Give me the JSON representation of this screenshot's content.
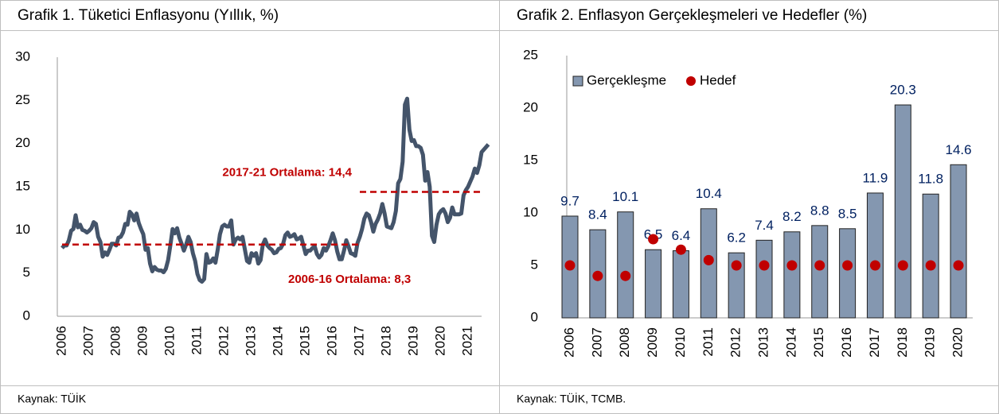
{
  "chart_data": [
    {
      "type": "line",
      "title": "Grafik 1. Tüketici Enflasyonu (Yıllık, %)",
      "source": "Kaynak: TÜİK",
      "categories": [
        "2006",
        null,
        null,
        null,
        null,
        null,
        null,
        null,
        null,
        null,
        null,
        null,
        "2007",
        null,
        null,
        null,
        null,
        null,
        null,
        null,
        null,
        null,
        null,
        null,
        "2008",
        null,
        null,
        null,
        null,
        null,
        null,
        null,
        null,
        null,
        null,
        null,
        "2009",
        null,
        null,
        null,
        null,
        null,
        null,
        null,
        null,
        null,
        null,
        null,
        "2010",
        null,
        null,
        null,
        null,
        null,
        null,
        null,
        null,
        null,
        null,
        null,
        "2011",
        null,
        null,
        null,
        null,
        null,
        null,
        null,
        null,
        null,
        null,
        null,
        "2012",
        null,
        null,
        null,
        null,
        null,
        null,
        null,
        null,
        null,
        null,
        null,
        "2013",
        null,
        null,
        null,
        null,
        null,
        null,
        null,
        null,
        null,
        null,
        null,
        "2014",
        null,
        null,
        null,
        null,
        null,
        null,
        null,
        null,
        null,
        null,
        null,
        "2015",
        null,
        null,
        null,
        null,
        null,
        null,
        null,
        null,
        null,
        null,
        null,
        "2016",
        null,
        null,
        null,
        null,
        null,
        null,
        null,
        null,
        null,
        null,
        null,
        "2017",
        null,
        null,
        null,
        null,
        null,
        null,
        null,
        null,
        null,
        null,
        null,
        "2018",
        null,
        null,
        null,
        null,
        null,
        null,
        null,
        null,
        null,
        null,
        null,
        "2019",
        null,
        null,
        null,
        null,
        null,
        null,
        null,
        null,
        null,
        null,
        null,
        "2020",
        null,
        null,
        null,
        null,
        null,
        null,
        null,
        null,
        null,
        null,
        null,
        "2021",
        null,
        null,
        null,
        null,
        null,
        null,
        null,
        null,
        null
      ],
      "values": [
        7.9,
        8.2,
        8.2,
        8.8,
        9.9,
        10.1,
        11.7,
        10.3,
        10.6,
        10.0,
        9.9,
        9.7,
        9.9,
        10.2,
        10.9,
        10.7,
        9.2,
        8.6,
        6.9,
        7.4,
        7.1,
        7.7,
        8.4,
        8.4,
        8.2,
        9.1,
        9.2,
        9.7,
        10.7,
        10.6,
        12.1,
        11.8,
        11.1,
        11.9,
        10.8,
        10.1,
        9.5,
        7.7,
        7.9,
        6.1,
        5.2,
        5.7,
        5.4,
        5.3,
        5.3,
        5.1,
        5.5,
        6.5,
        8.2,
        10.1,
        9.6,
        10.2,
        9.1,
        8.4,
        7.6,
        8.3,
        9.2,
        8.6,
        7.3,
        6.4,
        4.9,
        4.2,
        4.0,
        4.3,
        7.2,
        6.2,
        6.3,
        6.7,
        6.2,
        7.7,
        9.5,
        10.4,
        10.6,
        10.4,
        10.4,
        11.1,
        8.3,
        8.9,
        9.1,
        8.9,
        9.2,
        7.8,
        6.4,
        6.2,
        7.3,
        7.0,
        7.3,
        6.1,
        6.5,
        8.3,
        8.9,
        8.2,
        7.9,
        7.7,
        7.3,
        7.4,
        7.8,
        7.9,
        8.4,
        9.4,
        9.7,
        9.2,
        9.3,
        9.5,
        8.9,
        9.0,
        9.2,
        8.2,
        7.2,
        7.6,
        7.6,
        7.9,
        8.1,
        7.2,
        6.8,
        7.1,
        7.9,
        7.6,
        8.1,
        8.8,
        9.6,
        8.8,
        7.5,
        6.6,
        6.6,
        7.6,
        8.8,
        8.1,
        7.3,
        7.2,
        7.0,
        8.5,
        9.2,
        10.1,
        11.3,
        11.9,
        11.7,
        10.9,
        9.8,
        10.7,
        11.2,
        11.9,
        13.0,
        11.9,
        10.4,
        10.3,
        10.2,
        10.9,
        12.2,
        15.4,
        15.9,
        17.9,
        24.5,
        25.2,
        21.6,
        20.3,
        20.4,
        19.7,
        19.7,
        19.5,
        18.7,
        15.7,
        16.7,
        15.0,
        9.3,
        8.6,
        10.6,
        11.8,
        12.2,
        12.4,
        11.9,
        10.9,
        11.4,
        12.6,
        11.8,
        11.8,
        11.8,
        11.9,
        14.0,
        14.6,
        15.0,
        15.6,
        16.2,
        17.1,
        16.6,
        17.5,
        19.0,
        19.3,
        19.6,
        19.9
      ],
      "color": "#44546a",
      "ylim": [
        0,
        30
      ],
      "yticks": [
        0,
        5,
        10,
        15,
        20,
        25,
        30
      ],
      "reference_lines": [
        {
          "label": "2006-16 Ortalama: 8,3",
          "value": 8.3
        },
        {
          "label": "2017-21 Ortalama: 14,4",
          "value": 14.4
        }
      ],
      "reference_color": "#c00000"
    },
    {
      "type": "bar",
      "title": "Grafik 2. Enflasyon Gerçekleşmeleri ve Hedefler (%)",
      "source": "Kaynak: TÜİK, TCMB.",
      "categories": [
        "2006",
        "2007",
        "2008",
        "2009",
        "2010",
        "2011",
        "2012",
        "2013",
        "2014",
        "2015",
        "2016",
        "2017",
        "2018",
        "2019",
        "2020"
      ],
      "series": [
        {
          "name": "Gerçekleşme",
          "color": "#8497b0",
          "mark": "bar",
          "values": [
            9.7,
            8.4,
            10.1,
            6.5,
            6.4,
            10.4,
            6.2,
            7.4,
            8.2,
            8.8,
            8.5,
            11.9,
            20.3,
            11.8,
            14.6
          ]
        },
        {
          "name": "Hedef",
          "color": "#c00000",
          "mark": "dot",
          "values": [
            5,
            4,
            4,
            7.5,
            6.5,
            5.5,
            5,
            5,
            5,
            5,
            5,
            5,
            5,
            5,
            5
          ]
        }
      ],
      "ylim": [
        0,
        25
      ],
      "yticks": [
        0,
        5,
        10,
        15,
        20,
        25
      ],
      "legend": "top-left",
      "label_color": "#002060"
    }
  ]
}
